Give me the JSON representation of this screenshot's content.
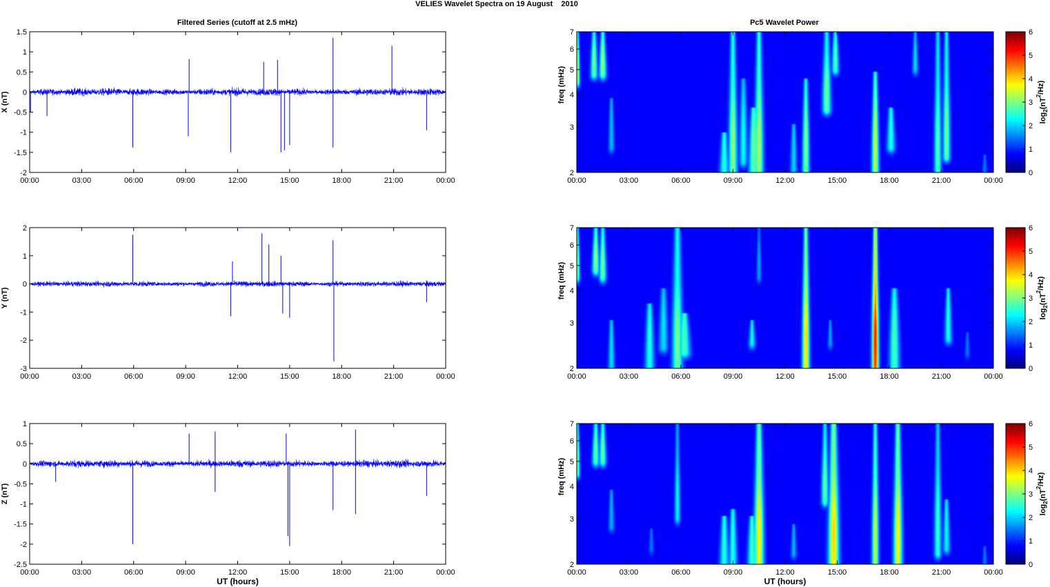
{
  "figure": {
    "suptitle": "VELIES Wavelet Spectra on 19 August    2010",
    "left_title": "Filtered Series (cutoff at 2.5 mHz)",
    "right_title": "Pc5 Wavelet Power",
    "xlabel": "UT (hours)",
    "freq_label": "freq (mHz)",
    "colorbar_label_pre": "log",
    "colorbar_label_sub": "2",
    "colorbar_label_mid": "(nT",
    "colorbar_label_sup": "2",
    "colorbar_label_post": "/Hz)",
    "line_color": "#0000ff"
  },
  "chart_data": [
    {
      "type": "line",
      "component": "X",
      "ylabel": "X (nT)",
      "xlim": [
        0,
        24
      ],
      "ylim": [
        -2,
        1.5
      ],
      "x_ticks": [
        "00:00",
        "03:00",
        "06:00",
        "09:00",
        "12:00",
        "15:00",
        "18:00",
        "21:00",
        "00:00"
      ],
      "y_ticks": [
        "1.5",
        "1",
        "0.5",
        "0",
        "-0.5",
        "-1",
        "-1.5",
        "-2"
      ],
      "noise_amplitude": 0.12,
      "spikes": [
        {
          "t": 5.95,
          "v": -1.38
        },
        {
          "t": 9.2,
          "v": 0.82
        },
        {
          "t": 9.15,
          "v": -1.1
        },
        {
          "t": 11.6,
          "v": -1.5
        },
        {
          "t": 13.5,
          "v": 0.75
        },
        {
          "t": 14.3,
          "v": 0.8
        },
        {
          "t": 14.5,
          "v": -1.5
        },
        {
          "t": 14.7,
          "v": -1.45
        },
        {
          "t": 15.0,
          "v": -1.32
        },
        {
          "t": 17.5,
          "v": 1.35
        },
        {
          "t": 17.5,
          "v": -1.38
        },
        {
          "t": 20.9,
          "v": 1.15
        },
        {
          "t": 22.9,
          "v": -0.95
        },
        {
          "t": 1.0,
          "v": -0.6
        },
        {
          "t": 0.05,
          "v": -0.5
        }
      ]
    },
    {
      "type": "line",
      "component": "Y",
      "ylabel": "Y (nT)",
      "xlim": [
        0,
        24
      ],
      "ylim": [
        -3,
        2
      ],
      "x_ticks": [
        "00:00",
        "03:00",
        "06:00",
        "09:00",
        "12:00",
        "15:00",
        "18:00",
        "21:00",
        "00:00"
      ],
      "y_ticks": [
        "2",
        "1",
        "0",
        "-1",
        "-2",
        "-3"
      ],
      "noise_amplitude": 0.13,
      "spikes": [
        {
          "t": 5.95,
          "v": 1.75
        },
        {
          "t": 11.7,
          "v": 0.8
        },
        {
          "t": 11.6,
          "v": -1.15
        },
        {
          "t": 13.4,
          "v": 1.8
        },
        {
          "t": 13.8,
          "v": 1.4
        },
        {
          "t": 14.5,
          "v": 1.0
        },
        {
          "t": 14.6,
          "v": -1.05
        },
        {
          "t": 15.0,
          "v": -1.2
        },
        {
          "t": 17.5,
          "v": 1.55
        },
        {
          "t": 17.55,
          "v": -2.75
        },
        {
          "t": 22.9,
          "v": -0.65
        }
      ]
    },
    {
      "type": "line",
      "component": "Z",
      "ylabel": "Z (nT)",
      "xlim": [
        0,
        24
      ],
      "ylim": [
        -2.5,
        1
      ],
      "x_ticks": [
        "00:00",
        "03:00",
        "06:00",
        "09:00",
        "12:00",
        "15:00",
        "18:00",
        "21:00",
        "00:00"
      ],
      "y_ticks": [
        "1",
        "0.5",
        "0",
        "-0.5",
        "-1",
        "-1.5",
        "-2",
        "-2.5"
      ],
      "noise_amplitude": 0.12,
      "spikes": [
        {
          "t": 5.95,
          "v": -2.0
        },
        {
          "t": 9.2,
          "v": 0.75
        },
        {
          "t": 10.7,
          "v": 0.8
        },
        {
          "t": 10.7,
          "v": -0.7
        },
        {
          "t": 14.8,
          "v": 0.75
        },
        {
          "t": 14.9,
          "v": -1.8
        },
        {
          "t": 15.0,
          "v": -2.05
        },
        {
          "t": 17.5,
          "v": -1.15
        },
        {
          "t": 18.8,
          "v": 0.85
        },
        {
          "t": 18.8,
          "v": -1.25
        },
        {
          "t": 22.9,
          "v": -0.8
        },
        {
          "t": 1.5,
          "v": -0.45
        }
      ]
    },
    {
      "type": "heatmap",
      "component": "X",
      "xlim": [
        0,
        24
      ],
      "ylim": [
        2,
        7
      ],
      "y_scale": "log",
      "x_ticks": [
        "00:00",
        "03:00",
        "06:00",
        "09:00",
        "12:00",
        "15:00",
        "18:00",
        "21:00",
        "00:00"
      ],
      "y_ticks": [
        "7",
        "6",
        "5",
        "4",
        "3",
        "2"
      ],
      "colorbar": {
        "range": [
          0,
          6
        ],
        "ticks": [
          "6",
          "5",
          "4",
          "3",
          "2",
          "1",
          "0"
        ],
        "colormap": "jet"
      },
      "features": [
        {
          "t": 0.05,
          "f0": 4.5,
          "f1": 7,
          "w": 0.1,
          "p": 3.0
        },
        {
          "t": 1.0,
          "f0": 4.8,
          "f1": 7,
          "w": 0.15,
          "p": 2.6
        },
        {
          "t": 1.5,
          "f0": 4.8,
          "f1": 7,
          "w": 0.15,
          "p": 2.8
        },
        {
          "t": 2.0,
          "f0": 2.5,
          "f1": 3.8,
          "w": 0.12,
          "p": 1.4
        },
        {
          "t": 8.5,
          "f0": 2.0,
          "f1": 2.8,
          "w": 0.2,
          "p": 2.0
        },
        {
          "t": 9.0,
          "f0": 2.0,
          "f1": 7,
          "w": 0.18,
          "p": 2.8
        },
        {
          "t": 9.6,
          "f0": 2.2,
          "f1": 4.5,
          "w": 0.18,
          "p": 1.8
        },
        {
          "t": 10.2,
          "f0": 2.0,
          "f1": 3.5,
          "w": 0.22,
          "p": 2.5
        },
        {
          "t": 10.5,
          "f0": 2.0,
          "f1": 7,
          "w": 0.18,
          "p": 3.0
        },
        {
          "t": 12.5,
          "f0": 2.0,
          "f1": 3.0,
          "w": 0.15,
          "p": 1.5
        },
        {
          "t": 13.2,
          "f0": 2.0,
          "f1": 4.5,
          "w": 0.15,
          "p": 2.7
        },
        {
          "t": 14.4,
          "f0": 3.5,
          "f1": 7,
          "w": 0.18,
          "p": 2.6
        },
        {
          "t": 14.9,
          "f0": 5.0,
          "f1": 7,
          "w": 0.15,
          "p": 2.4
        },
        {
          "t": 17.2,
          "f0": 2.0,
          "f1": 4.8,
          "w": 0.15,
          "p": 3.2
        },
        {
          "t": 18.1,
          "f0": 2.5,
          "f1": 3.5,
          "w": 0.18,
          "p": 2.0
        },
        {
          "t": 19.5,
          "f0": 5.0,
          "f1": 7,
          "w": 0.12,
          "p": 1.6
        },
        {
          "t": 20.8,
          "f0": 2.0,
          "f1": 7,
          "w": 0.15,
          "p": 2.4
        },
        {
          "t": 21.3,
          "f0": 2.3,
          "f1": 7,
          "w": 0.15,
          "p": 2.6
        },
        {
          "t": 23.5,
          "f0": 2.0,
          "f1": 2.3,
          "w": 0.1,
          "p": 0.9
        }
      ]
    },
    {
      "type": "heatmap",
      "component": "Y",
      "xlim": [
        0,
        24
      ],
      "ylim": [
        2,
        7
      ],
      "y_scale": "log",
      "x_ticks": [
        "00:00",
        "03:00",
        "06:00",
        "09:00",
        "12:00",
        "15:00",
        "18:00",
        "21:00",
        "00:00"
      ],
      "y_ticks": [
        "7",
        "6",
        "5",
        "4",
        "3",
        "2"
      ],
      "colorbar": {
        "range": [
          0,
          6
        ],
        "ticks": [
          "6",
          "5",
          "4",
          "3",
          "2",
          "1",
          "0"
        ],
        "colormap": "jet"
      },
      "features": [
        {
          "t": 0.05,
          "f0": 4.5,
          "f1": 7,
          "w": 0.1,
          "p": 2.6
        },
        {
          "t": 1.1,
          "f0": 4.8,
          "f1": 7,
          "w": 0.15,
          "p": 2.8
        },
        {
          "t": 1.5,
          "f0": 4.5,
          "f1": 7,
          "w": 0.15,
          "p": 2.6
        },
        {
          "t": 2.0,
          "f0": 2.0,
          "f1": 3.0,
          "w": 0.14,
          "p": 1.6
        },
        {
          "t": 4.2,
          "f0": 2.0,
          "f1": 3.5,
          "w": 0.2,
          "p": 2.0
        },
        {
          "t": 5.0,
          "f0": 2.4,
          "f1": 4.0,
          "w": 0.2,
          "p": 1.6
        },
        {
          "t": 5.8,
          "f0": 2.0,
          "f1": 7,
          "w": 0.22,
          "p": 2.6
        },
        {
          "t": 6.2,
          "f0": 2.3,
          "f1": 3.2,
          "w": 0.25,
          "p": 2.3
        },
        {
          "t": 10.1,
          "f0": 2.5,
          "f1": 3.0,
          "w": 0.14,
          "p": 1.8
        },
        {
          "t": 10.5,
          "f0": 4.5,
          "f1": 7,
          "w": 0.1,
          "p": 1.2
        },
        {
          "t": 13.2,
          "f0": 2.0,
          "f1": 7,
          "w": 0.15,
          "p": 3.8
        },
        {
          "t": 14.6,
          "f0": 2.5,
          "f1": 3.0,
          "w": 0.1,
          "p": 1.2
        },
        {
          "t": 17.2,
          "f0": 2.0,
          "f1": 7,
          "w": 0.14,
          "p": 5.2
        },
        {
          "t": 18.3,
          "f0": 2.0,
          "f1": 4.0,
          "w": 0.22,
          "p": 2.3
        },
        {
          "t": 21.4,
          "f0": 2.6,
          "f1": 4.0,
          "w": 0.15,
          "p": 2.0
        },
        {
          "t": 22.5,
          "f0": 2.3,
          "f1": 2.7,
          "w": 0.1,
          "p": 0.9
        }
      ]
    },
    {
      "type": "heatmap",
      "component": "Z",
      "xlim": [
        0,
        24
      ],
      "ylim": [
        2,
        7
      ],
      "y_scale": "log",
      "x_ticks": [
        "00:00",
        "03:00",
        "06:00",
        "09:00",
        "12:00",
        "15:00",
        "18:00",
        "21:00",
        "00:00"
      ],
      "y_ticks": [
        "7",
        "6",
        "5",
        "4",
        "3",
        "2"
      ],
      "colorbar": {
        "range": [
          0,
          6
        ],
        "ticks": [
          "6",
          "5",
          "4",
          "3",
          "2",
          "1",
          "0"
        ],
        "colormap": "jet"
      },
      "features": [
        {
          "t": 0.05,
          "f0": 4.5,
          "f1": 7,
          "w": 0.1,
          "p": 2.6
        },
        {
          "t": 1.1,
          "f0": 5.0,
          "f1": 7,
          "w": 0.15,
          "p": 2.5
        },
        {
          "t": 1.5,
          "f0": 5.0,
          "f1": 7,
          "w": 0.15,
          "p": 2.5
        },
        {
          "t": 2.0,
          "f0": 2.8,
          "f1": 3.8,
          "w": 0.12,
          "p": 1.3
        },
        {
          "t": 4.3,
          "f0": 2.3,
          "f1": 2.7,
          "w": 0.1,
          "p": 0.9
        },
        {
          "t": 5.8,
          "f0": 3.0,
          "f1": 7,
          "w": 0.12,
          "p": 1.8
        },
        {
          "t": 8.5,
          "f0": 2.0,
          "f1": 3.0,
          "w": 0.2,
          "p": 2.0
        },
        {
          "t": 9.0,
          "f0": 2.0,
          "f1": 3.2,
          "w": 0.18,
          "p": 2.0
        },
        {
          "t": 10.1,
          "f0": 2.0,
          "f1": 3.0,
          "w": 0.2,
          "p": 2.2
        },
        {
          "t": 10.5,
          "f0": 2.0,
          "f1": 7,
          "w": 0.2,
          "p": 3.6
        },
        {
          "t": 12.5,
          "f0": 2.2,
          "f1": 2.8,
          "w": 0.12,
          "p": 1.3
        },
        {
          "t": 14.3,
          "f0": 3.5,
          "f1": 7,
          "w": 0.15,
          "p": 2.5
        },
        {
          "t": 14.8,
          "f0": 2.0,
          "f1": 7,
          "w": 0.22,
          "p": 3.8
        },
        {
          "t": 17.2,
          "f0": 2.0,
          "f1": 7,
          "w": 0.14,
          "p": 3.2
        },
        {
          "t": 18.5,
          "f0": 2.0,
          "f1": 7,
          "w": 0.18,
          "p": 3.6
        },
        {
          "t": 20.8,
          "f0": 2.2,
          "f1": 7,
          "w": 0.15,
          "p": 2.2
        },
        {
          "t": 21.3,
          "f0": 2.3,
          "f1": 3.5,
          "w": 0.15,
          "p": 1.8
        },
        {
          "t": 23.5,
          "f0": 2.0,
          "f1": 2.3,
          "w": 0.1,
          "p": 0.9
        }
      ]
    }
  ]
}
